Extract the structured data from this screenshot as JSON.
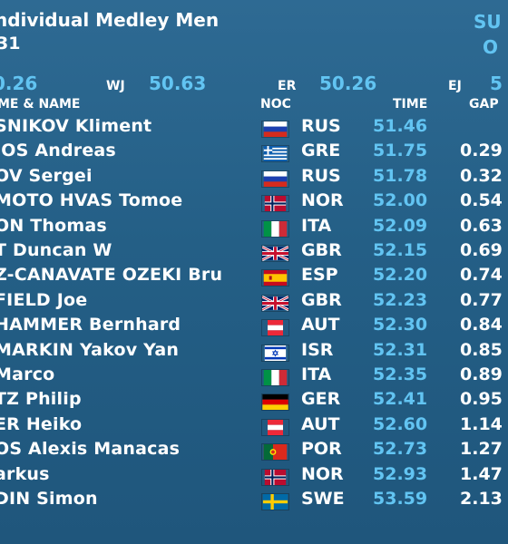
{
  "header": {
    "title": "ndividual Medley Men",
    "subtitle": "31",
    "side_line1": "SU",
    "side_line2": "O"
  },
  "records": [
    {
      "label": "",
      "value": "0.26"
    },
    {
      "label": "WJ",
      "value": "50.63"
    },
    {
      "label": "ER",
      "value": "50.26"
    },
    {
      "label": "EJ",
      "value": "5"
    }
  ],
  "columns": {
    "name": "ME & NAME",
    "noc": "NOC",
    "time": "TIME",
    "gap": "GAP"
  },
  "colors": {
    "background": "#245f86",
    "accent": "#62c4f2",
    "text": "#ffffff"
  },
  "rows": [
    {
      "name": "SNIKOV Kliment",
      "flag": "russia-flag-icon",
      "noc": "RUS",
      "time": "51.46",
      "gap": ""
    },
    {
      "name": "IOS Andreas",
      "flag": "greece-flag-icon",
      "noc": "GRE",
      "time": "51.75",
      "gap": "0.29"
    },
    {
      "name": "OV Sergei",
      "flag": "russia-flag-icon",
      "noc": "RUS",
      "time": "51.78",
      "gap": "0.32"
    },
    {
      "name": "MOTO HVAS Tomoe",
      "flag": "norway-flag-icon",
      "noc": "NOR",
      "time": "52.00",
      "gap": "0.54"
    },
    {
      "name": "ON Thomas",
      "flag": "italy-flag-icon",
      "noc": "ITA",
      "time": "52.09",
      "gap": "0.63"
    },
    {
      "name": "T Duncan W",
      "flag": "uk-flag-icon",
      "noc": "GBR",
      "time": "52.15",
      "gap": "0.69"
    },
    {
      "name": "Z-CANAVATE OZEKI Bru",
      "flag": "spain-flag-icon",
      "noc": "ESP",
      "time": "52.20",
      "gap": "0.74"
    },
    {
      "name": "FIELD Joe",
      "flag": "uk-flag-icon",
      "noc": "GBR",
      "time": "52.23",
      "gap": "0.77"
    },
    {
      "name": "HAMMER Bernhard",
      "flag": "austria-flag-icon",
      "noc": "AUT",
      "time": "52.30",
      "gap": "0.84"
    },
    {
      "name": "MARKIN Yakov Yan",
      "flag": "israel-flag-icon",
      "noc": "ISR",
      "time": "52.31",
      "gap": "0.85"
    },
    {
      "name": "Marco",
      "flag": "italy-flag-icon",
      "noc": "ITA",
      "time": "52.35",
      "gap": "0.89"
    },
    {
      "name": "TZ Philip",
      "flag": "germany-flag-icon",
      "noc": "GER",
      "time": "52.41",
      "gap": "0.95"
    },
    {
      "name": "ER Heiko",
      "flag": "austria-flag-icon",
      "noc": "AUT",
      "time": "52.60",
      "gap": "1.14"
    },
    {
      "name": "OS Alexis Manacas",
      "flag": "portugal-flag-icon",
      "noc": "POR",
      "time": "52.73",
      "gap": "1.27"
    },
    {
      "name": "arkus",
      "flag": "norway-flag-icon",
      "noc": "NOR",
      "time": "52.93",
      "gap": "1.47"
    },
    {
      "name": "DIN Simon",
      "flag": "sweden-flag-icon",
      "noc": "SWE",
      "time": "53.59",
      "gap": "2.13"
    }
  ]
}
